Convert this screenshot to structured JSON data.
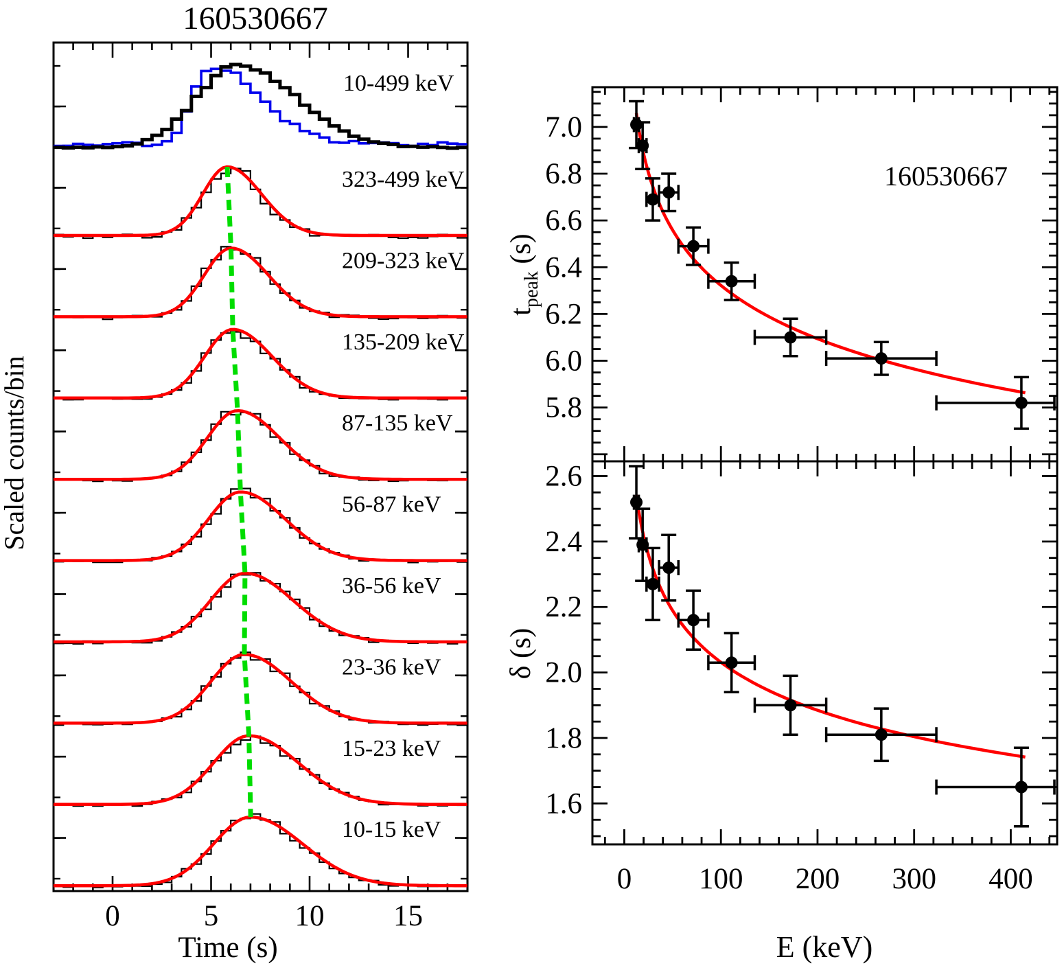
{
  "figure_title": "160530667",
  "colors": {
    "black": "#000000",
    "red": "#ff0000",
    "blue": "#0000ee",
    "green": "#00dd00",
    "background": "#ffffff"
  },
  "chart_data": [
    {
      "type": "line",
      "id": "energy_resolved_light_curves",
      "title": "160530667",
      "xlabel": "Time (s)",
      "ylabel": "Scaled counts/bin",
      "xlim": [
        -3,
        18
      ],
      "x_ticks": [
        "0",
        "5",
        "10",
        "15"
      ],
      "bin_width_s": 0.5,
      "combined_band": {
        "label": "10-499 keV",
        "series": [
          {
            "name": "summed light curve",
            "color": "#000000",
            "t_peak_s": 6.35
          },
          {
            "name": "comparison light curve",
            "color": "#0000ee",
            "t_peak_s": 4.85
          }
        ]
      },
      "bands": [
        {
          "label": "323-499 keV",
          "t_peak_s": 5.82,
          "width_s": 1.65
        },
        {
          "label": "209-323 keV",
          "t_peak_s": 6.01,
          "width_s": 1.81
        },
        {
          "label": "135-209 keV",
          "t_peak_s": 6.1,
          "width_s": 1.9
        },
        {
          "label": "87-135 keV",
          "t_peak_s": 6.34,
          "width_s": 2.03
        },
        {
          "label": "56-87 keV",
          "t_peak_s": 6.49,
          "width_s": 2.16
        },
        {
          "label": "36-56 keV",
          "t_peak_s": 6.72,
          "width_s": 2.32
        },
        {
          "label": "23-36 keV",
          "t_peak_s": 6.69,
          "width_s": 2.27
        },
        {
          "label": "15-23 keV",
          "t_peak_s": 6.92,
          "width_s": 2.39
        },
        {
          "label": "10-15 keV",
          "t_peak_s": 7.01,
          "width_s": 2.52
        }
      ],
      "annotations": {
        "green_dashed_line": "tracks pulse peak drifting to later times at lower energies",
        "red_curves": "pulse model fits"
      }
    },
    {
      "type": "scatter",
      "id": "t_peak_vs_energy",
      "label": "160530667",
      "xlabel": "E (keV)",
      "ylabel_parts": {
        "pre": "t",
        "sub": "peak",
        "post": " (s)"
      },
      "xlim": [
        -33,
        448
      ],
      "ylim": [
        5.57,
        7.17
      ],
      "x_ticks": [
        "0",
        "100",
        "200",
        "300",
        "400"
      ],
      "x_tick_values": [
        0,
        100,
        200,
        300,
        400
      ],
      "y_ticks": [
        "7.0",
        "6.8",
        "6.6",
        "6.4",
        "6.2",
        "6.0",
        "5.8"
      ],
      "y_tick_values": [
        7.0,
        6.8,
        6.6,
        6.4,
        6.2,
        6.0,
        5.8
      ],
      "points": [
        {
          "E": 12.5,
          "E_lo": 10,
          "E_hi": 15,
          "y": 7.01,
          "y_err": 0.1
        },
        {
          "E": 19,
          "E_lo": 15,
          "E_hi": 23,
          "y": 6.92,
          "y_err": 0.1
        },
        {
          "E": 29.5,
          "E_lo": 23,
          "E_hi": 36,
          "y": 6.69,
          "y_err": 0.09
        },
        {
          "E": 46,
          "E_lo": 36,
          "E_hi": 56,
          "y": 6.72,
          "y_err": 0.08
        },
        {
          "E": 71.5,
          "E_lo": 56,
          "E_hi": 87,
          "y": 6.49,
          "y_err": 0.08
        },
        {
          "E": 111,
          "E_lo": 87,
          "E_hi": 135,
          "y": 6.34,
          "y_err": 0.08
        },
        {
          "E": 172,
          "E_lo": 135,
          "E_hi": 209,
          "y": 6.1,
          "y_err": 0.08
        },
        {
          "E": 266,
          "E_lo": 209,
          "E_hi": 323,
          "y": 6.01,
          "y_err": 0.07
        },
        {
          "E": 411,
          "E_lo": 323,
          "E_hi": 499,
          "y": 5.82,
          "y_err": 0.11
        }
      ],
      "fit": {
        "type": "power_law",
        "norm": 8.07,
        "index": -0.053,
        "E_range": [
          12.5,
          415
        ],
        "color": "#ff0000"
      }
    },
    {
      "type": "scatter",
      "id": "delta_vs_energy",
      "xlabel": "E (keV)",
      "ylabel": "δ (s)",
      "xlim": [
        -33,
        448
      ],
      "ylim": [
        1.475,
        2.645
      ],
      "x_ticks": [
        "0",
        "100",
        "200",
        "300",
        "400"
      ],
      "x_tick_values": [
        0,
        100,
        200,
        300,
        400
      ],
      "y_ticks": [
        "2.6",
        "2.4",
        "2.2",
        "2.0",
        "1.8",
        "1.6"
      ],
      "y_tick_values": [
        2.6,
        2.4,
        2.2,
        2.0,
        1.8,
        1.6
      ],
      "points": [
        {
          "E": 12.5,
          "E_lo": 10,
          "E_hi": 15,
          "y": 2.52,
          "y_err": 0.11
        },
        {
          "E": 19,
          "E_lo": 15,
          "E_hi": 23,
          "y": 2.39,
          "y_err": 0.11
        },
        {
          "E": 29.5,
          "E_lo": 23,
          "E_hi": 36,
          "y": 2.27,
          "y_err": 0.11
        },
        {
          "E": 46,
          "E_lo": 36,
          "E_hi": 56,
          "y": 2.32,
          "y_err": 0.1
        },
        {
          "E": 71.5,
          "E_lo": 56,
          "E_hi": 87,
          "y": 2.16,
          "y_err": 0.09
        },
        {
          "E": 111,
          "E_lo": 87,
          "E_hi": 135,
          "y": 2.03,
          "y_err": 0.09
        },
        {
          "E": 172,
          "E_lo": 135,
          "E_hi": 209,
          "y": 1.9,
          "y_err": 0.09
        },
        {
          "E": 266,
          "E_lo": 209,
          "E_hi": 323,
          "y": 1.81,
          "y_err": 0.08
        },
        {
          "E": 411,
          "E_lo": 323,
          "E_hi": 499,
          "y": 1.65,
          "y_err": 0.12
        }
      ],
      "fit": {
        "type": "power_law",
        "norm": 3.34,
        "index": -0.108,
        "E_range": [
          12.5,
          415
        ],
        "color": "#ff0000"
      }
    }
  ]
}
